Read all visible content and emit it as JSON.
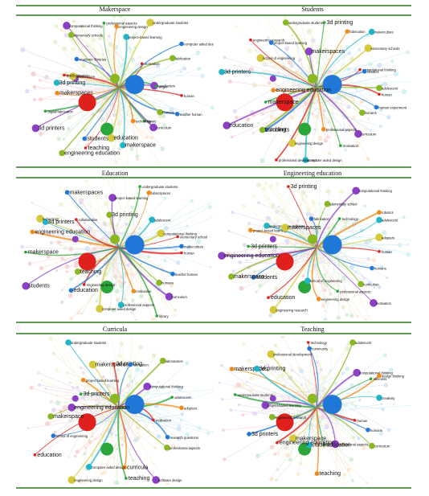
{
  "panels": [
    {
      "title": "Makerspace",
      "labels": [
        "human",
        "teacher human",
        "humans",
        "curriculum",
        "library",
        "technology",
        "makerspace",
        "education",
        "teaching",
        "students",
        "engineering education",
        "3d printers",
        "digital fabrication",
        "makerspaces",
        "3d printing",
        "makerculture",
        "public libraries",
        "academic libraries",
        "elementary schools",
        "computational thinking",
        "professional aspects",
        "engineering design",
        "project-based learning",
        "undergraduate students",
        "motivation",
        "computer aided design",
        "fabrication",
        "manufacture",
        "single"
      ]
    },
    {
      "title": "Students",
      "labels": [
        "human",
        "human experiment",
        "humans",
        "curriculum",
        "motivation",
        "professional aspects",
        "computer aided design",
        "engineering design",
        "professional development",
        "students",
        "teaching",
        "education",
        "makerspace",
        "engineering education",
        "3d printers",
        "school of engineering",
        "engineering research",
        "project-based learning",
        "undergraduate students",
        "makerspaces",
        "3d printing",
        "fabrication",
        "makerculture",
        "elementary schools",
        "computational thinking",
        "robotics",
        "adolescent"
      ]
    },
    {
      "title": "Education",
      "labels": [
        "human",
        "teacher human",
        "humans",
        "curriculum",
        "library",
        "motivation",
        "professional aspects",
        "computer aided design",
        "engineering design",
        "education",
        "teaching",
        "students",
        "makerspace",
        "engineering education",
        "3d printers",
        "technology",
        "collaborative",
        "makerspaces",
        "3d printing",
        "project-based learning",
        "undergraduate students",
        "labscriptures",
        "adolescent",
        "computational thinking",
        "elementary school",
        "makerculture"
      ]
    },
    {
      "title": "Engineering education",
      "labels": [
        "human",
        "humans",
        "curriculum",
        "motivation",
        "professional aspects",
        "engineering design",
        "school of engineering",
        "engineering research",
        "education",
        "students",
        "makerspace",
        "engineering education",
        "3d printers",
        "project-based learning",
        "undergraduate students",
        "makerspaces",
        "3d printing",
        "fabrication",
        "elementary school",
        "computational thinking",
        "technology",
        "robotics",
        "adolescent",
        "adopters"
      ]
    },
    {
      "title": "Curricula",
      "labels": [
        "motivation",
        "research questions",
        "professional aspects",
        "software design",
        "teaching",
        "curricula",
        "computer aided design",
        "engineering design",
        "education",
        "school of engineering",
        "makerspace",
        "engineering education",
        "3d printers",
        "project-based learning",
        "undergraduate students",
        "makerspaces",
        "3d printing",
        "fabrication",
        "laboratories",
        "computational thinking",
        "adolescent",
        "adopters"
      ]
    },
    {
      "title": "Teaching",
      "labels": [
        "human",
        "humans",
        "curriculum",
        "professional aspects",
        "education",
        "teaching",
        "students",
        "makerspace",
        "engineering education",
        "3d printers",
        "engineering research",
        "project-based learning",
        "undergraduate students",
        "makerspaces",
        "3d printing",
        "professional development",
        "technology",
        "community",
        "adolescent",
        "computational thinking",
        "ableness",
        "design thinking",
        "creativity"
      ]
    }
  ],
  "colors": {
    "divider": "#5f9b55",
    "clusters": [
      "#e0201c",
      "#1f77d8",
      "#8ab820",
      "#8a3fc4",
      "#2aa63a",
      "#f08a18",
      "#22b5c8",
      "#d4c93a"
    ]
  }
}
